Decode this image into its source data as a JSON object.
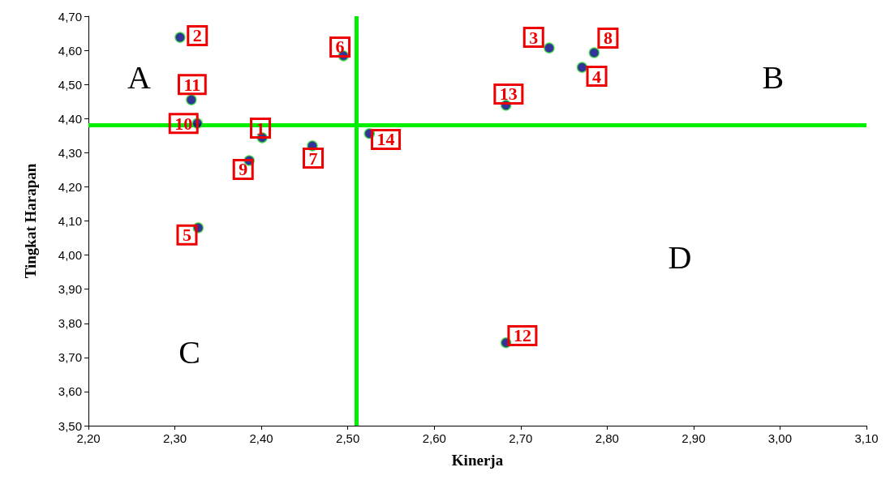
{
  "chart_data": {
    "type": "scatter",
    "xlabel": "Kinerja",
    "ylabel": "Tingkat Harapan",
    "x": [
      2.401,
      2.306,
      2.733,
      2.771,
      2.327,
      2.495,
      2.459,
      2.785,
      2.386,
      2.326,
      2.319,
      2.683,
      2.683,
      2.525
    ],
    "series": [
      {
        "color": "#000080",
        "values": [
          4.344,
          4.638,
          4.607,
          4.55,
          4.08,
          4.584,
          4.32,
          4.593,
          4.277,
          4.386,
          4.455,
          3.743,
          4.439,
          4.356
        ]
      }
    ],
    "marker": "circle",
    "grid": false,
    "xlim": [
      2.2,
      3.1
    ],
    "xticks": [
      {
        "value": 2.2,
        "label": "2,20"
      },
      {
        "value": 2.3,
        "label": "2,30"
      },
      {
        "value": 2.4,
        "label": "2,40"
      },
      {
        "value": 2.5,
        "label": "2,50"
      },
      {
        "value": 2.6,
        "label": "2,60"
      },
      {
        "value": 2.7,
        "label": "2,70"
      },
      {
        "value": 2.8,
        "label": "2,80"
      },
      {
        "value": 2.9,
        "label": "2,90"
      },
      {
        "value": 3.0,
        "label": "3,00"
      },
      {
        "value": 3.1,
        "label": "3,10"
      }
    ],
    "ylim": [
      3.5,
      4.7
    ],
    "yticks": [
      {
        "value": 3.5,
        "label": "3,50"
      },
      {
        "value": 3.6,
        "label": "3,60"
      },
      {
        "value": 3.7,
        "label": "3,70"
      },
      {
        "value": 3.8,
        "label": "3,80"
      },
      {
        "value": 3.9,
        "label": "3,90"
      },
      {
        "value": 4.0,
        "label": "4,00"
      },
      {
        "value": 4.1,
        "label": "4,10"
      },
      {
        "value": 4.2,
        "label": "4,20"
      },
      {
        "value": 4.3,
        "label": "4,30"
      },
      {
        "value": 4.4,
        "label": "4,40"
      },
      {
        "value": 4.5,
        "label": "4,50"
      },
      {
        "value": 4.6,
        "label": "4,60"
      },
      {
        "value": 4.7,
        "label": "4,70"
      }
    ],
    "ref_lines": [
      {
        "axis": "x",
        "value": 2.51,
        "color": "#00ee00"
      },
      {
        "axis": "y",
        "value": 4.38,
        "color": "#00ee00"
      }
    ],
    "annotations": [
      {
        "text": "1",
        "x": 2.399,
        "y": 4.372
      },
      {
        "text": "2",
        "x": 2.326,
        "y": 4.643
      },
      {
        "text": "3",
        "x": 2.715,
        "y": 4.638
      },
      {
        "text": "4",
        "x": 2.788,
        "y": 4.524
      },
      {
        "text": "5",
        "x": 2.314,
        "y": 4.059
      },
      {
        "text": "6",
        "x": 2.491,
        "y": 4.61
      },
      {
        "text": "7",
        "x": 2.46,
        "y": 4.284
      },
      {
        "text": "8",
        "x": 2.801,
        "y": 4.636
      },
      {
        "text": "9",
        "x": 2.379,
        "y": 4.251
      },
      {
        "text": "10",
        "x": 2.31,
        "y": 4.386
      },
      {
        "text": "11",
        "x": 2.32,
        "y": 4.5
      },
      {
        "text": "12",
        "x": 2.702,
        "y": 3.764
      },
      {
        "text": "13",
        "x": 2.686,
        "y": 4.472
      },
      {
        "text": "14",
        "x": 2.544,
        "y": 4.339
      },
      "A",
      "B",
      "C",
      "D"
    ]
  }
}
